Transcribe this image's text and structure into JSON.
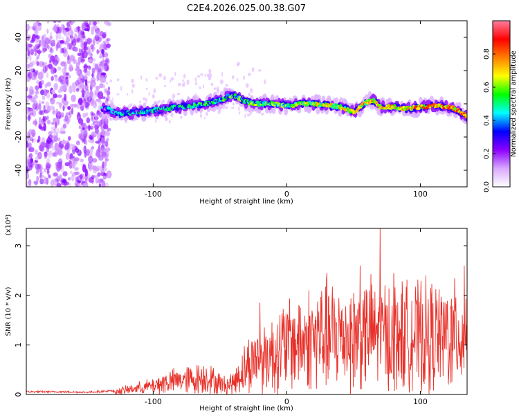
{
  "title": "C2E4.2026.025.00.38.G07",
  "chart_data": [
    {
      "type": "heatmap",
      "xlabel": "Height of straight line (km)",
      "ylabel": "Frequency (Hz)",
      "xlim": [
        -195,
        135
      ],
      "ylim": [
        -50,
        50
      ],
      "xticks": [
        -100,
        0,
        100
      ],
      "yticks": [
        -40,
        -20,
        0,
        20,
        40
      ],
      "xtick_labels": [
        "-100",
        "0",
        "100"
      ],
      "ytick_labels": [
        "-40",
        "-20",
        "0",
        "20",
        "40"
      ],
      "ridge_x": [
        -135,
        -125,
        -110,
        -100,
        -90,
        -80,
        -70,
        -60,
        -55,
        -50,
        -45,
        -40,
        -35,
        -30,
        -20,
        -10,
        0,
        10,
        20,
        30,
        40,
        45,
        50,
        55,
        60,
        65,
        70,
        80,
        90,
        100,
        110,
        120,
        125,
        130,
        135
      ],
      "ridge_freq_hz": [
        -3,
        -6,
        -5,
        -4,
        -3,
        -2,
        -1,
        0,
        1,
        2,
        4,
        5,
        3,
        1,
        0,
        0,
        -1,
        0,
        0,
        -1,
        -2,
        -3,
        -5,
        -2,
        1,
        2,
        -2,
        -2,
        -3,
        -2,
        -1,
        -2,
        -3,
        -5,
        -8
      ],
      "colorbar": {
        "label": "Normalized spectral amplitude",
        "range": [
          0,
          1
        ],
        "ticks": [
          0.0,
          0.2,
          0.4,
          0.6,
          0.8
        ],
        "tick_labels": [
          "0.0",
          "0.2",
          "0.4",
          "0.6",
          "0.8"
        ],
        "colors": [
          "#ffffff",
          "#d9a8ff",
          "#8b00ff",
          "#0000ff",
          "#00ffff",
          "#00ff00",
          "#ffff00",
          "#ff7f00",
          "#ff0000",
          "#ff7f9f"
        ]
      }
    },
    {
      "type": "line",
      "xlabel": "Height of straight line (km)",
      "ylabel": "SNR (10 * v/v)",
      "y_multiplier": "(x10⁴)",
      "xlim": [
        -195,
        135
      ],
      "ylim": [
        0,
        3.35
      ],
      "xticks": [
        -100,
        0,
        100
      ],
      "yticks": [
        0,
        1,
        2,
        3
      ],
      "xtick_labels": [
        "-100",
        "0",
        "100"
      ],
      "ytick_labels": [
        "0",
        "1",
        "2",
        "3"
      ],
      "color": "#e8312a",
      "series": [
        {
          "name": "SNR",
          "x": [
            -195,
            -170,
            -150,
            -130,
            -115,
            -100,
            -90,
            -80,
            -70,
            -60,
            -50,
            -45,
            -40,
            -36,
            -30,
            -25,
            -20,
            -15,
            -10,
            -5,
            0,
            10,
            20,
            30,
            40,
            50,
            60,
            70,
            80,
            90,
            100,
            110,
            120,
            130,
            135
          ],
          "envelope": [
            0.06,
            0.06,
            0.05,
            0.08,
            0.18,
            0.28,
            0.4,
            0.45,
            0.5,
            0.55,
            0.35,
            0.3,
            0.4,
            0.6,
            0.9,
            1.1,
            1.2,
            1.25,
            1.35,
            1.5,
            1.6,
            1.7,
            1.8,
            1.85,
            1.9,
            1.9,
            1.95,
            1.95,
            1.9,
            1.9,
            1.85,
            1.9,
            1.85,
            1.9,
            1.9
          ],
          "peaks": [
            {
              "x": -20,
              "y": 1.85
            },
            {
              "x": 30,
              "y": 2.45
            },
            {
              "x": 55,
              "y": 2.6
            },
            {
              "x": 70,
              "y": 3.35
            },
            {
              "x": 80,
              "y": 2.45
            },
            {
              "x": 133,
              "y": 2.6
            }
          ]
        }
      ]
    }
  ]
}
